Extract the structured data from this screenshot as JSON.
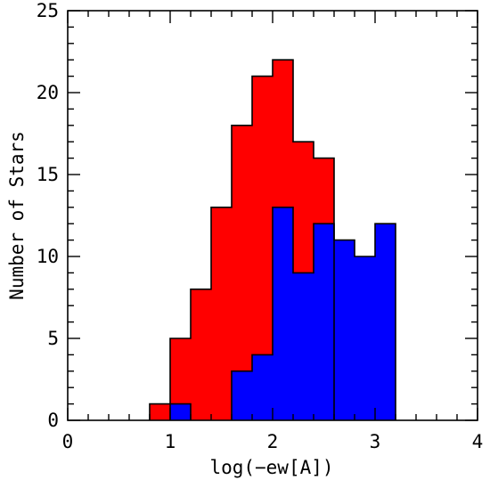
{
  "chart_data": {
    "type": "bar",
    "title": "",
    "xlabel": "log(−ew[A])",
    "ylabel": "Number of Stars",
    "xlim": [
      0,
      4
    ],
    "ylim": [
      0,
      25
    ],
    "xticks": [
      "0",
      "1",
      "2",
      "3",
      "4"
    ],
    "yticks": [
      "0",
      "5",
      "10",
      "15",
      "20",
      "25"
    ],
    "grid": false,
    "legend": "none",
    "bin_width": 0.2,
    "series": [
      {
        "color": "#ff0000",
        "bins": [
          {
            "x": 0.8,
            "y": 1
          },
          {
            "x": 1.0,
            "y": 5
          },
          {
            "x": 1.2,
            "y": 8
          },
          {
            "x": 1.4,
            "y": 13
          },
          {
            "x": 1.6,
            "y": 18
          },
          {
            "x": 1.8,
            "y": 21
          },
          {
            "x": 2.0,
            "y": 22
          },
          {
            "x": 2.2,
            "y": 17
          },
          {
            "x": 2.4,
            "y": 16
          }
        ]
      },
      {
        "color": "#0000ff",
        "bins": [
          {
            "x": 1.0,
            "y": 1
          },
          {
            "x": 1.6,
            "y": 3
          },
          {
            "x": 1.8,
            "y": 4
          },
          {
            "x": 2.0,
            "y": 13
          },
          {
            "x": 2.2,
            "y": 9
          },
          {
            "x": 2.4,
            "y": 12
          },
          {
            "x": 2.6,
            "y": 11
          },
          {
            "x": 2.8,
            "y": 10
          },
          {
            "x": 3.0,
            "y": 12
          }
        ]
      }
    ]
  }
}
